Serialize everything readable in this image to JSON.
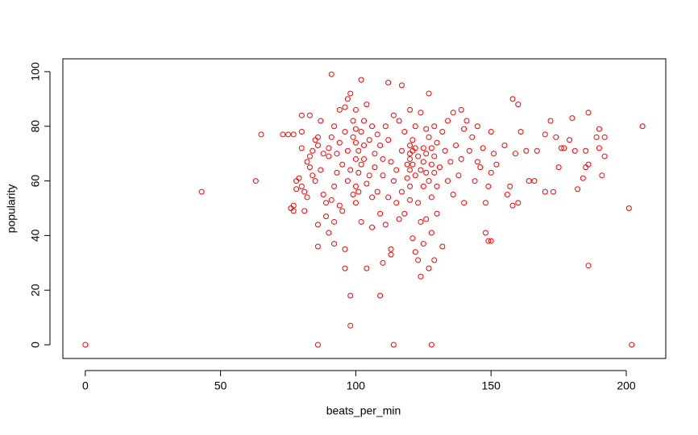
{
  "chart_data": {
    "type": "scatter",
    "x_label": "beats_per_min",
    "y_label": "popularity",
    "color": "#ff0000",
    "xlim": [
      -8.3,
      214.6
    ],
    "ylim": [
      -5,
      104.7
    ],
    "xticks": [
      0,
      50,
      100,
      150,
      200
    ],
    "yticks": [
      0,
      20,
      40,
      60,
      80,
      100
    ],
    "x": [
      0,
      43,
      63,
      65,
      73,
      75,
      77,
      76,
      77,
      77,
      78,
      78,
      79,
      80,
      80,
      81,
      80,
      80,
      81,
      82,
      82,
      83,
      83,
      83,
      84,
      84,
      85,
      85,
      86,
      86,
      86,
      86,
      87,
      87,
      88,
      88,
      89,
      89,
      90,
      90,
      90,
      91,
      91,
      91,
      92,
      92,
      92,
      92,
      93,
      93,
      94,
      94,
      94,
      95,
      95,
      96,
      96,
      96,
      96,
      97,
      97,
      97,
      98,
      98,
      98,
      98,
      99,
      99,
      99,
      100,
      100,
      100,
      100,
      100,
      100,
      101,
      101,
      101,
      102,
      102,
      102,
      102,
      103,
      103,
      103,
      104,
      104,
      104,
      105,
      105,
      106,
      106,
      106,
      107,
      107,
      108,
      108,
      109,
      109,
      109,
      110,
      110,
      110,
      111,
      111,
      112,
      112,
      112,
      113,
      113,
      113,
      114,
      114,
      115,
      115,
      116,
      116,
      117,
      117,
      117,
      118,
      118,
      119,
      119,
      120,
      120,
      120,
      120,
      120,
      120,
      120,
      121,
      121,
      121,
      121,
      122,
      122,
      122,
      122,
      123,
      123,
      123,
      124,
      124,
      124,
      124,
      125,
      125,
      125,
      125,
      126,
      126,
      126,
      126,
      127,
      127,
      127,
      127,
      128,
      128,
      128,
      128,
      128,
      129,
      129,
      129,
      129,
      130,
      130,
      130,
      131,
      132,
      132,
      133,
      134,
      134,
      135,
      136,
      136,
      137,
      138,
      139,
      139,
      140,
      140,
      141,
      142,
      143,
      144,
      145,
      145,
      146,
      147,
      148,
      148,
      149,
      149,
      150,
      150,
      150,
      151,
      152,
      155,
      156,
      157,
      158,
      158,
      159,
      160,
      160,
      161,
      163,
      164,
      166,
      167,
      170,
      170,
      172,
      173,
      174,
      175,
      176,
      177,
      179,
      180,
      181,
      182,
      184,
      185,
      185,
      186,
      186,
      186,
      189,
      190,
      190,
      191,
      192,
      192,
      201,
      202,
      206,
      86,
      114
    ],
    "values": [
      0,
      56,
      60,
      77,
      77,
      77,
      77,
      50,
      49,
      51,
      57,
      60,
      61,
      72,
      78,
      56,
      58,
      84,
      49,
      54,
      67,
      69,
      65,
      84,
      62,
      71,
      60,
      75,
      36,
      44,
      73,
      76,
      82,
      64,
      70,
      55,
      47,
      52,
      72,
      41,
      69,
      99,
      53,
      76,
      37,
      45,
      58,
      80,
      70,
      63,
      86,
      74,
      51,
      49,
      66,
      35,
      28,
      78,
      87,
      90,
      60,
      71,
      18,
      7,
      92,
      64,
      76,
      55,
      82,
      86,
      74,
      68,
      58,
      52,
      79,
      71,
      63,
      56,
      97,
      45,
      66,
      78,
      82,
      73,
      68,
      28,
      88,
      59,
      75,
      62,
      54,
      80,
      43,
      70,
      65,
      56,
      77,
      18,
      48,
      73,
      30,
      68,
      62,
      44,
      80,
      96,
      75,
      54,
      35,
      33,
      67,
      84,
      60,
      52,
      64,
      82,
      46,
      95,
      71,
      56,
      78,
      48,
      66,
      61,
      86,
      73,
      70,
      68,
      64,
      58,
      53,
      39,
      75,
      71,
      66,
      34,
      62,
      72,
      80,
      31,
      69,
      52,
      25,
      85,
      64,
      45,
      72,
      67,
      58,
      37,
      79,
      70,
      63,
      46,
      92,
      76,
      60,
      28,
      0,
      72,
      66,
      54,
      41,
      80,
      69,
      63,
      31,
      74,
      58,
      48,
      65,
      36,
      78,
      71,
      60,
      82,
      67,
      55,
      85,
      73,
      62,
      86,
      68,
      52,
      79,
      82,
      71,
      76,
      60,
      67,
      80,
      65,
      72,
      52,
      41,
      38,
      58,
      38,
      78,
      63,
      70,
      66,
      73,
      55,
      58,
      90,
      51,
      70,
      88,
      52,
      78,
      71,
      60,
      60,
      71,
      56,
      77,
      82,
      56,
      76,
      65,
      72,
      72,
      75,
      83,
      71,
      57,
      61,
      65,
      71,
      85,
      29,
      66,
      76,
      79,
      72,
      62,
      76,
      69,
      50,
      0,
      80,
      0,
      0
    ]
  }
}
